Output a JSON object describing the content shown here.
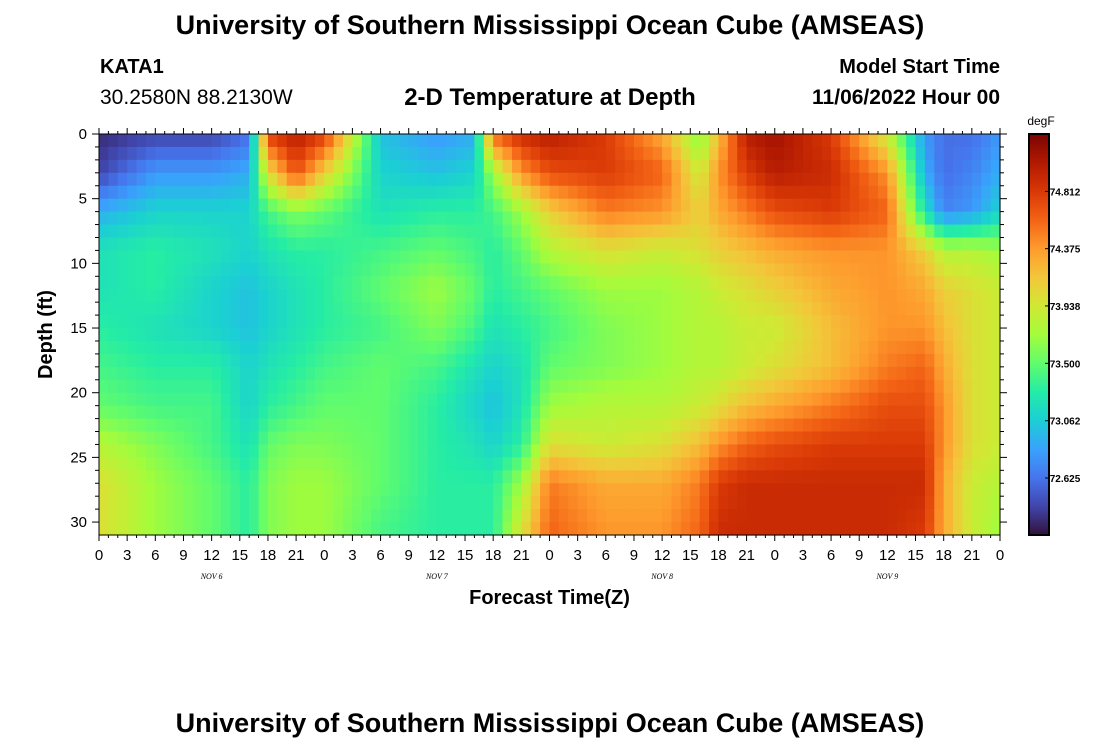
{
  "header": {
    "title": "University of Southern Mississippi Ocean Cube (AMSEAS)",
    "station_id": "KATA1",
    "station_coords": "30.2580N  88.2130W",
    "product_title": "2-D Temperature at Depth",
    "start_label": "Model Start Time",
    "start_value": "11/06/2022 Hour 00"
  },
  "footer": {
    "title": "University of Southern Mississippi Ocean Cube (AMSEAS)"
  },
  "chart_data": {
    "type": "heatmap",
    "xlabel": "Forecast Time(Z)",
    "ylabel": "Depth (ft)",
    "x_range_hours": [
      0,
      96
    ],
    "x_tick_labels": [
      "0",
      "3",
      "6",
      "9",
      "12",
      "15",
      "18",
      "21",
      "0",
      "3",
      "6",
      "9",
      "12",
      "15",
      "18",
      "21",
      "0",
      "3",
      "6",
      "9",
      "12",
      "15",
      "18",
      "21",
      "0",
      "3",
      "6",
      "9",
      "12",
      "15",
      "18",
      "21",
      "0"
    ],
    "day_labels": [
      {
        "label": "NOV 6",
        "hour": 12
      },
      {
        "label": "NOV 7",
        "hour": 36
      },
      {
        "label": "NOV 8",
        "hour": 60
      },
      {
        "label": "NOV 9",
        "hour": 84
      }
    ],
    "y_range": [
      0,
      31
    ],
    "y_reversed": true,
    "y_ticks": [
      0,
      5,
      10,
      15,
      20,
      25,
      30
    ],
    "colorbar": {
      "unit": "degF",
      "min": 72.19,
      "max": 75.25,
      "ticks": [
        "74.812",
        "74.375",
        "73.938",
        "73.500",
        "73.062",
        "72.625"
      ],
      "palette": [
        "#30123b",
        "#4145ab",
        "#4675ed",
        "#39a2fc",
        "#1bcfd4",
        "#24eca6",
        "#61fc6c",
        "#a4fc3b",
        "#d1e834",
        "#f3c63a",
        "#fe9b2d",
        "#f36315",
        "#d93806",
        "#b11901",
        "#7a0402"
      ]
    },
    "depth_profile_ft": [
      0,
      3,
      6,
      9,
      12,
      15,
      18,
      21,
      24,
      27,
      31
    ],
    "time_profile_hours": [
      0,
      6,
      12,
      16,
      18,
      21,
      24,
      30,
      36,
      40,
      42,
      45,
      48,
      54,
      60,
      64,
      66,
      69,
      72,
      78,
      84,
      88,
      90,
      93,
      96
    ],
    "temperature_degF": [
      [
        72.3,
        72.4,
        72.9,
        73.2,
        73.2,
        73.3,
        73.4,
        73.5,
        73.8,
        74.0,
        74.0
      ],
      [
        72.4,
        72.8,
        73.1,
        73.3,
        73.3,
        73.2,
        73.3,
        73.4,
        73.6,
        73.7,
        73.7
      ],
      [
        72.4,
        72.8,
        73.1,
        73.2,
        73.1,
        73.1,
        73.3,
        73.4,
        73.4,
        73.5,
        73.5
      ],
      [
        72.6,
        72.9,
        73.1,
        73.1,
        73.0,
        73.0,
        73.1,
        73.1,
        73.2,
        73.3,
        73.3
      ],
      [
        74.8,
        74.0,
        73.4,
        73.2,
        73.1,
        73.1,
        73.2,
        73.3,
        73.5,
        73.6,
        73.6
      ],
      [
        75.0,
        74.7,
        73.6,
        73.3,
        73.2,
        73.2,
        73.3,
        73.4,
        73.6,
        73.7,
        73.7
      ],
      [
        74.8,
        74.1,
        73.5,
        73.3,
        73.3,
        73.3,
        73.4,
        73.5,
        73.6,
        73.7,
        73.7
      ],
      [
        73.0,
        73.1,
        73.2,
        73.4,
        73.5,
        73.4,
        73.5,
        73.5,
        73.5,
        73.5,
        73.4
      ],
      [
        72.8,
        73.0,
        73.3,
        73.5,
        73.7,
        73.6,
        73.4,
        73.3,
        73.3,
        73.3,
        73.3
      ],
      [
        72.9,
        73.1,
        73.3,
        73.4,
        73.5,
        73.4,
        73.2,
        73.1,
        73.2,
        73.3,
        73.3
      ],
      [
        74.6,
        73.7,
        73.4,
        73.3,
        73.3,
        73.2,
        73.1,
        73.0,
        73.1,
        73.3,
        73.3
      ],
      [
        74.9,
        74.4,
        73.7,
        73.5,
        73.4,
        73.3,
        73.2,
        73.2,
        73.3,
        73.7,
        74.0
      ],
      [
        75.0,
        74.7,
        74.1,
        73.8,
        73.5,
        73.4,
        73.5,
        73.7,
        74.0,
        74.5,
        74.6
      ],
      [
        74.8,
        74.8,
        74.5,
        74.0,
        73.7,
        73.6,
        73.6,
        73.8,
        73.9,
        74.3,
        74.4
      ],
      [
        74.3,
        74.6,
        74.4,
        73.9,
        73.7,
        73.7,
        73.7,
        73.8,
        74.0,
        74.3,
        74.4
      ],
      [
        73.6,
        73.9,
        74.1,
        74.0,
        73.8,
        73.8,
        73.8,
        73.9,
        74.2,
        74.5,
        74.6
      ],
      [
        74.2,
        74.4,
        74.3,
        74.1,
        73.9,
        73.8,
        73.8,
        74.0,
        74.4,
        74.8,
        74.9
      ],
      [
        75.0,
        74.8,
        74.5,
        74.2,
        74.0,
        73.9,
        73.9,
        74.2,
        74.6,
        74.9,
        74.9
      ],
      [
        75.1,
        75.0,
        74.7,
        74.3,
        74.1,
        73.9,
        74.0,
        74.3,
        74.7,
        74.9,
        74.9
      ],
      [
        74.8,
        74.9,
        74.8,
        74.4,
        74.3,
        74.2,
        74.2,
        74.5,
        74.8,
        74.9,
        74.9
      ],
      [
        73.9,
        74.4,
        74.6,
        74.4,
        74.4,
        74.4,
        74.5,
        74.7,
        74.8,
        74.9,
        74.9
      ],
      [
        72.8,
        72.9,
        73.2,
        74.1,
        74.3,
        74.4,
        74.6,
        74.7,
        74.8,
        74.9,
        74.8
      ],
      [
        72.6,
        72.6,
        72.7,
        73.8,
        74.1,
        74.2,
        74.3,
        74.4,
        74.4,
        74.3,
        74.3
      ],
      [
        72.6,
        72.7,
        72.8,
        73.8,
        74.0,
        74.0,
        74.0,
        74.0,
        74.0,
        73.9,
        73.9
      ],
      [
        72.8,
        72.9,
        73.1,
        73.7,
        73.9,
        73.9,
        73.9,
        73.9,
        73.9,
        73.8,
        73.7
      ]
    ]
  }
}
